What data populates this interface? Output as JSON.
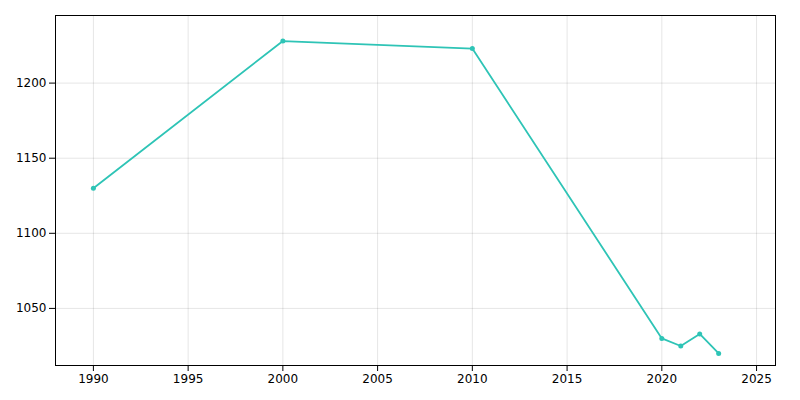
{
  "chart_data": {
    "type": "line",
    "x": [
      1990,
      2000,
      2010,
      2020,
      2021,
      2022,
      2023
    ],
    "values": [
      1130,
      1228,
      1223,
      1030,
      1025,
      1033,
      1020
    ],
    "color": "#2ec4b6",
    "marker": "circle",
    "xlim": [
      1988,
      2026
    ],
    "ylim": [
      1012,
      1245
    ],
    "xticks": [
      1990,
      1995,
      2000,
      2005,
      2010,
      2015,
      2020,
      2025
    ],
    "yticks": [
      1050,
      1100,
      1150,
      1200
    ],
    "grid": true
  }
}
